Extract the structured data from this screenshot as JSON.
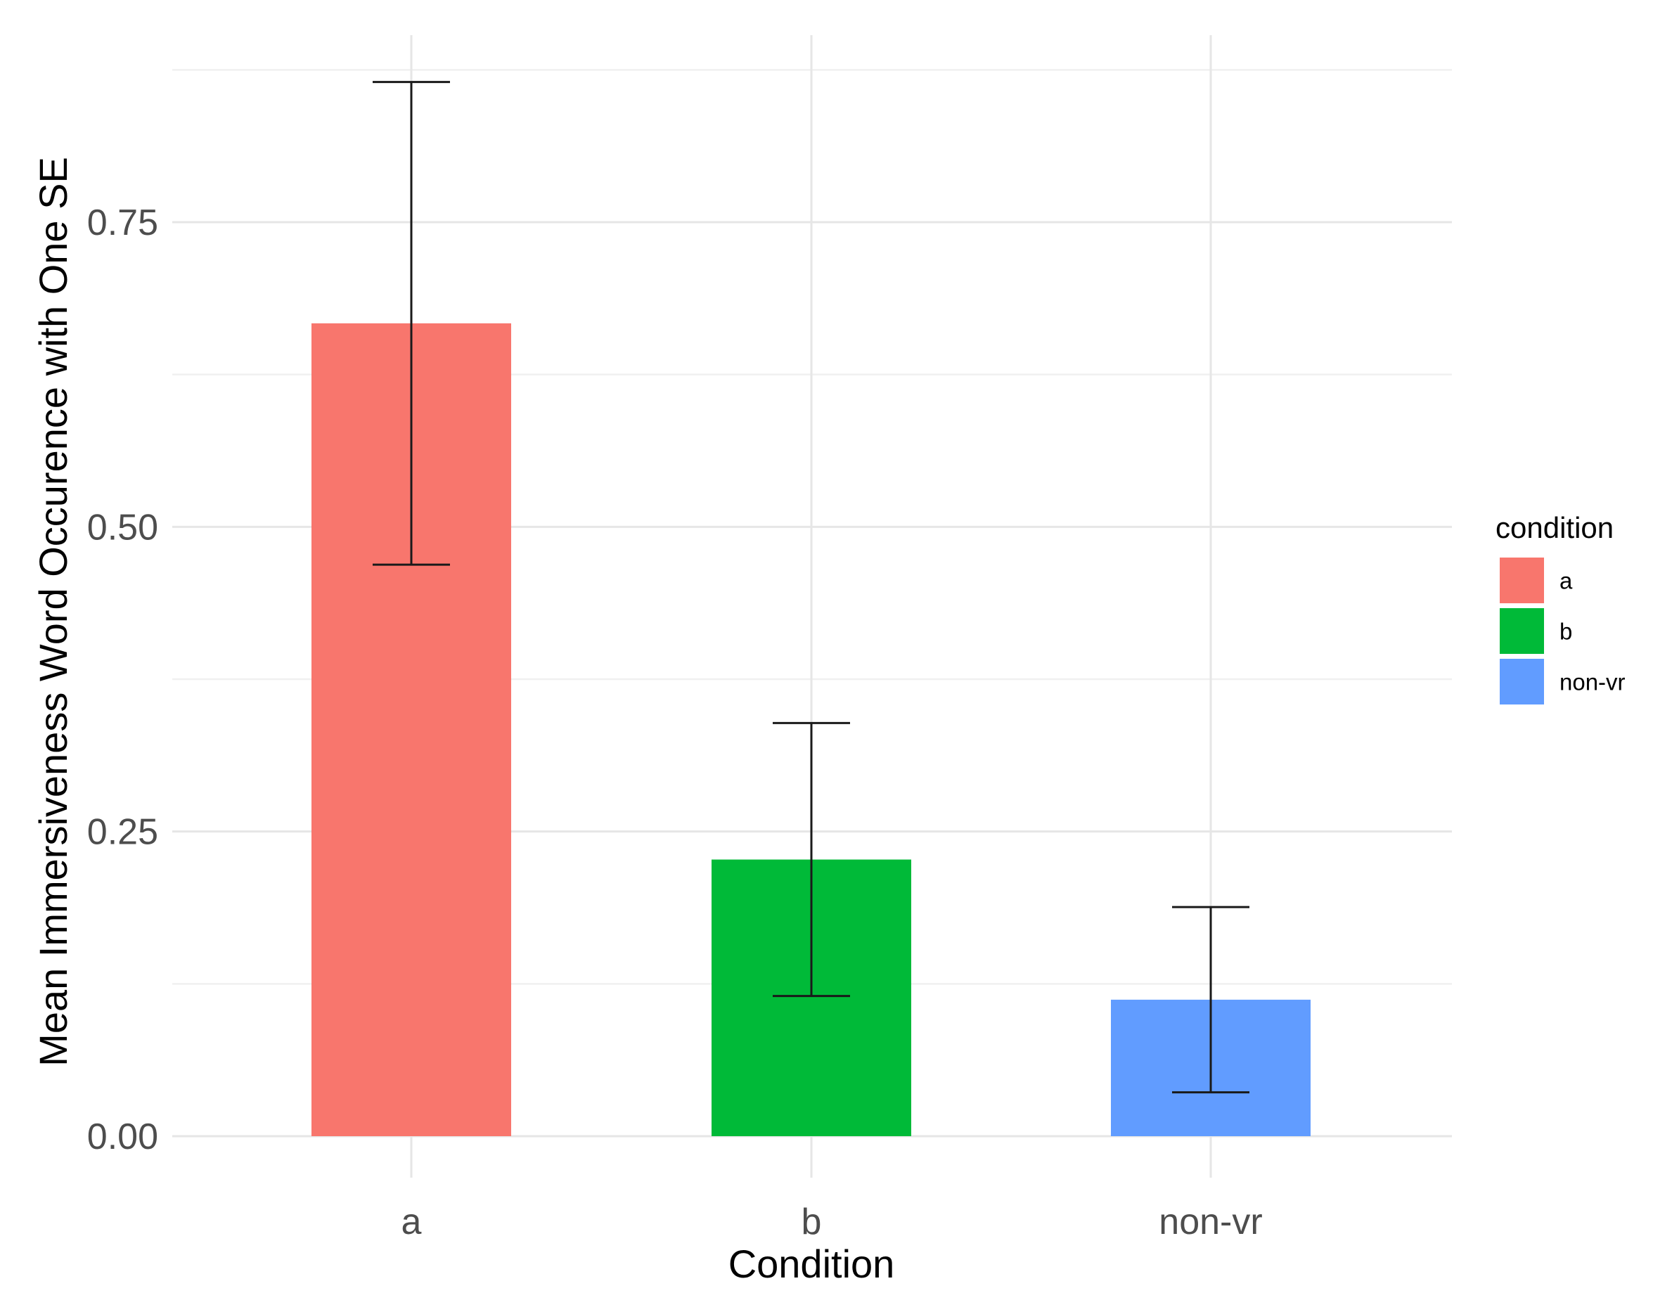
{
  "chart_data": {
    "type": "bar",
    "categories": [
      "a",
      "b",
      "non-vr"
    ],
    "values": [
      0.667,
      0.227,
      0.112
    ],
    "se_lower": [
      0.469,
      0.115,
      0.036
    ],
    "se_upper": [
      0.865,
      0.339,
      0.188
    ],
    "colors": [
      "#F8766D",
      "#00BA38",
      "#619CFF"
    ],
    "xlabel": "Condition",
    "ylabel": "Mean Immersiveness Word Occurence with One SE",
    "yticks": [
      0.0,
      0.25,
      0.5,
      0.75
    ],
    "ytick_labels": [
      "0.00",
      "0.25",
      "0.50",
      "0.75"
    ],
    "ylim": [
      -0.04,
      0.92
    ],
    "grid": true,
    "legend": {
      "title": "condition",
      "position": "right",
      "entries": [
        "a",
        "b",
        "non-vr"
      ]
    }
  }
}
